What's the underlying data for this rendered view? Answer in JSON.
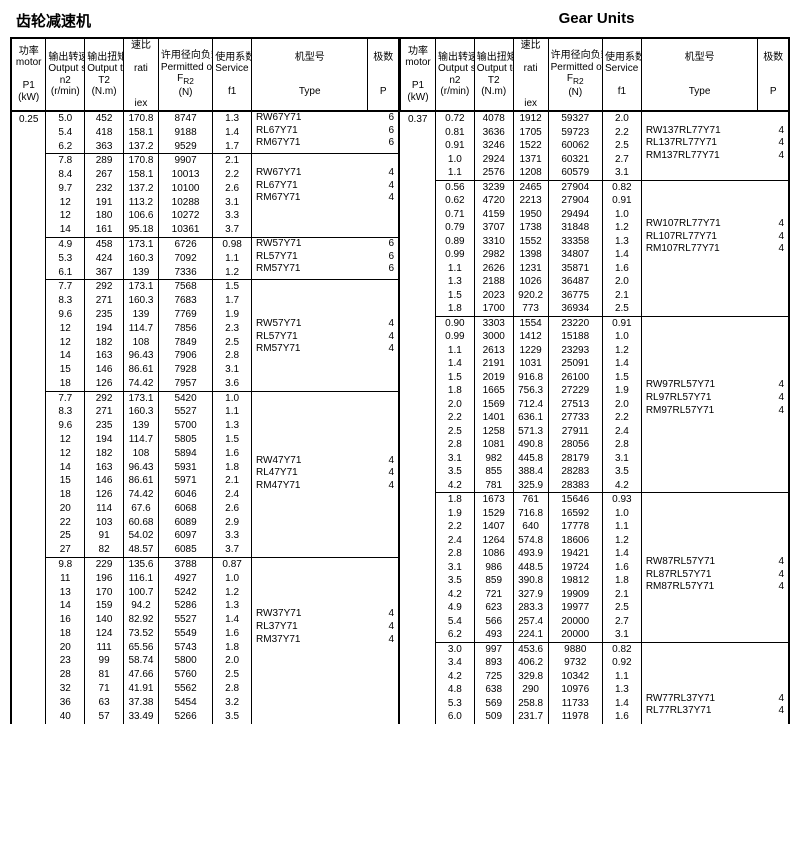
{
  "title_cn": "齿轮减速机",
  "title_en": "Gear Units",
  "headers": {
    "p1": {
      "cn": "功率",
      "en": "motor",
      "sym": "P1",
      "unit": "(kW)"
    },
    "n2": {
      "cn": "输出转速",
      "en": "Output speed",
      "sym": "n2",
      "unit": "(r/min)"
    },
    "t2": {
      "cn": "输出扭矩",
      "en": "Output torque",
      "sym": "T2",
      "unit": "(N.m)"
    },
    "iex": {
      "cn": "速比",
      "en": "rati",
      "sym": "",
      "unit": "iex"
    },
    "fr2": {
      "cn": "许用径向负载",
      "en": "Permitted overhung",
      "sym": "F<sub>R2</sub>",
      "unit": "(N)"
    },
    "f1": {
      "cn": "使用系数",
      "en": "Service factor",
      "sym": "",
      "unit": "f1"
    },
    "type": {
      "cn": "机型号",
      "en": "Type",
      "sym": "",
      "unit": ""
    },
    "p": {
      "cn": "极数",
      "en": "P",
      "sym": "",
      "unit": ""
    }
  },
  "left": {
    "p1": "0.25",
    "groups": [
      {
        "rows": [
          [
            "5.0",
            "452",
            "170.8",
            "8747",
            "1.3"
          ],
          [
            "5.4",
            "418",
            "158.1",
            "9188",
            "1.4"
          ],
          [
            "6.2",
            "363",
            "137.2",
            "9529",
            "1.7"
          ]
        ],
        "types": [
          "RW67Y71",
          "RL67Y71",
          "RM67Y71"
        ],
        "p": [
          "6",
          "6",
          "6"
        ],
        "typeStart": 0
      },
      {
        "rows": [
          [
            "7.8",
            "289",
            "170.8",
            "9907",
            "2.1"
          ],
          [
            "8.4",
            "267",
            "158.1",
            "10013",
            "2.2"
          ],
          [
            "9.7",
            "232",
            "137.2",
            "10100",
            "2.6"
          ],
          [
            "12",
            "191",
            "113.2",
            "10288",
            "3.1"
          ],
          [
            "12",
            "180",
            "106.6",
            "10272",
            "3.3"
          ],
          [
            "14",
            "161",
            "95.18",
            "10361",
            "3.7"
          ]
        ],
        "types": [
          "RW67Y71",
          "RL67Y71",
          "RM67Y71"
        ],
        "p": [
          "4",
          "4",
          "4"
        ],
        "typeStart": 1
      },
      {
        "rows": [
          [
            "4.9",
            "458",
            "173.1",
            "6726",
            "0.98"
          ],
          [
            "5.3",
            "424",
            "160.3",
            "7092",
            "1.1"
          ],
          [
            "6.1",
            "367",
            "139",
            "7336",
            "1.2"
          ]
        ],
        "types": [
          "RW57Y71",
          "RL57Y71",
          "RM57Y71"
        ],
        "p": [
          "6",
          "6",
          "6"
        ],
        "typeStart": 0
      },
      {
        "rows": [
          [
            "7.7",
            "292",
            "173.1",
            "7568",
            "1.5"
          ],
          [
            "8.3",
            "271",
            "160.3",
            "7683",
            "1.7"
          ],
          [
            "9.6",
            "235",
            "139",
            "7769",
            "1.9"
          ],
          [
            "12",
            "194",
            "114.7",
            "7856",
            "2.3"
          ],
          [
            "12",
            "182",
            "108",
            "7849",
            "2.5"
          ],
          [
            "14",
            "163",
            "96.43",
            "7906",
            "2.8"
          ],
          [
            "15",
            "146",
            "86.61",
            "7928",
            "3.1"
          ],
          [
            "18",
            "126",
            "74.42",
            "7957",
            "3.6"
          ]
        ],
        "types": [
          "RW57Y71",
          "RL57Y71",
          "RM57Y71"
        ],
        "p": [
          "4",
          "4",
          "4"
        ],
        "typeStart": 3
      },
      {
        "rows": [
          [
            "7.7",
            "292",
            "173.1",
            "5420",
            "1.0"
          ],
          [
            "8.3",
            "271",
            "160.3",
            "5527",
            "1.1"
          ],
          [
            "9.6",
            "235",
            "139",
            "5700",
            "1.3"
          ],
          [
            "12",
            "194",
            "114.7",
            "5805",
            "1.5"
          ],
          [
            "12",
            "182",
            "108",
            "5894",
            "1.6"
          ],
          [
            "14",
            "163",
            "96.43",
            "5931",
            "1.8"
          ],
          [
            "15",
            "146",
            "86.61",
            "5971",
            "2.1"
          ],
          [
            "18",
            "126",
            "74.42",
            "6046",
            "2.4"
          ],
          [
            "20",
            "114",
            "67.6",
            "6068",
            "2.6"
          ],
          [
            "22",
            "103",
            "60.68",
            "6089",
            "2.9"
          ],
          [
            "25",
            "91",
            "54.02",
            "6097",
            "3.3"
          ],
          [
            "27",
            "82",
            "48.57",
            "6085",
            "3.7"
          ]
        ],
        "types": [
          "RW47Y71",
          "RL47Y71",
          "RM47Y71"
        ],
        "p": [
          "4",
          "4",
          "4"
        ],
        "typeStart": 5
      },
      {
        "rows": [
          [
            "9.8",
            "229",
            "135.6",
            "3788",
            "0.87"
          ],
          [
            "11",
            "196",
            "116.1",
            "4927",
            "1.0"
          ],
          [
            "13",
            "170",
            "100.7",
            "5242",
            "1.2"
          ],
          [
            "14",
            "159",
            "94.2",
            "5286",
            "1.3"
          ],
          [
            "16",
            "140",
            "82.92",
            "5527",
            "1.4"
          ],
          [
            "18",
            "124",
            "73.52",
            "5549",
            "1.6"
          ],
          [
            "20",
            "111",
            "65.56",
            "5743",
            "1.8"
          ],
          [
            "23",
            "99",
            "58.74",
            "5800",
            "2.0"
          ],
          [
            "28",
            "81",
            "47.66",
            "5760",
            "2.5"
          ],
          [
            "32",
            "71",
            "41.91",
            "5562",
            "2.8"
          ],
          [
            "36",
            "63",
            "37.38",
            "5454",
            "3.2"
          ],
          [
            "40",
            "57",
            "33.49",
            "5266",
            "3.5"
          ]
        ],
        "types": [
          "RW37Y71",
          "RL37Y71",
          "RM37Y71"
        ],
        "p": [
          "4",
          "4",
          "4"
        ],
        "typeStart": 4
      }
    ]
  },
  "right": {
    "p1": "0.37",
    "groups": [
      {
        "rows": [
          [
            "0.72",
            "4078",
            "1912",
            "59327",
            "2.0"
          ],
          [
            "0.81",
            "3636",
            "1705",
            "59723",
            "2.2"
          ],
          [
            "0.91",
            "3246",
            "1522",
            "60062",
            "2.5"
          ],
          [
            "1.0",
            "2924",
            "1371",
            "60321",
            "2.7"
          ],
          [
            "1.1",
            "2576",
            "1208",
            "60579",
            "3.1"
          ]
        ],
        "types": [
          "RW137RL77Y71",
          "RL137RL77Y71",
          "RM137RL77Y71"
        ],
        "p": [
          "4",
          "4",
          "4"
        ],
        "typeStart": 1
      },
      {
        "rows": [
          [
            "0.56",
            "3239",
            "2465",
            "27904",
            "0.82"
          ],
          [
            "0.62",
            "4720",
            "2213",
            "27904",
            "0.91"
          ],
          [
            "0.71",
            "4159",
            "1950",
            "29494",
            "1.0"
          ],
          [
            "0.79",
            "3707",
            "1738",
            "31848",
            "1.2"
          ],
          [
            "0.89",
            "3310",
            "1552",
            "33358",
            "1.3"
          ],
          [
            "0.99",
            "2982",
            "1398",
            "34807",
            "1.4"
          ],
          [
            "1.1",
            "2626",
            "1231",
            "35871",
            "1.6"
          ],
          [
            "1.3",
            "2188",
            "1026",
            "36487",
            "2.0"
          ],
          [
            "1.5",
            "2023",
            "920.2",
            "36775",
            "2.1"
          ],
          [
            "1.8",
            "1700",
            "773",
            "36934",
            "2.5"
          ]
        ],
        "types": [
          "RW107RL77Y71",
          "RL107RL77Y71",
          "RM107RL77Y71"
        ],
        "p": [
          "4",
          "4",
          "4"
        ],
        "typeStart": 3
      },
      {
        "rows": [
          [
            "0.90",
            "3303",
            "1554",
            "23220",
            "0.91"
          ],
          [
            "0.99",
            "3000",
            "1412",
            "15188",
            "1.0"
          ],
          [
            "1.1",
            "2613",
            "1229",
            "23293",
            "1.2"
          ],
          [
            "1.4",
            "2191",
            "1031",
            "25091",
            "1.4"
          ],
          [
            "1.5",
            "2019",
            "916.8",
            "26100",
            "1.5"
          ],
          [
            "1.8",
            "1665",
            "756.3",
            "27229",
            "1.9"
          ],
          [
            "2.0",
            "1569",
            "712.4",
            "27513",
            "2.0"
          ],
          [
            "2.2",
            "1401",
            "636.1",
            "27733",
            "2.2"
          ],
          [
            "2.5",
            "1258",
            "571.3",
            "27911",
            "2.4"
          ],
          [
            "2.8",
            "1081",
            "490.8",
            "28056",
            "2.8"
          ],
          [
            "3.1",
            "982",
            "445.8",
            "28179",
            "3.1"
          ],
          [
            "3.5",
            "855",
            "388.4",
            "28283",
            "3.5"
          ],
          [
            "4.2",
            "781",
            "325.9",
            "28383",
            "4.2"
          ]
        ],
        "types": [
          "RW97RL57Y71",
          "RL97RL57Y71",
          "RM97RL57Y71"
        ],
        "p": [
          "4",
          "4",
          "4"
        ],
        "typeStart": 5
      },
      {
        "rows": [
          [
            "1.8",
            "1673",
            "761",
            "15646",
            "0.93"
          ],
          [
            "1.9",
            "1529",
            "716.8",
            "16592",
            "1.0"
          ],
          [
            "2.2",
            "1407",
            "640",
            "17778",
            "1.1"
          ],
          [
            "2.4",
            "1264",
            "574.8",
            "18606",
            "1.2"
          ],
          [
            "2.8",
            "1086",
            "493.9",
            "19421",
            "1.4"
          ],
          [
            "3.1",
            "986",
            "448.5",
            "19724",
            "1.6"
          ],
          [
            "3.5",
            "859",
            "390.8",
            "19812",
            "1.8"
          ],
          [
            "4.2",
            "721",
            "327.9",
            "19909",
            "2.1"
          ],
          [
            "4.9",
            "623",
            "283.3",
            "19977",
            "2.5"
          ],
          [
            "5.4",
            "566",
            "257.4",
            "20000",
            "2.7"
          ],
          [
            "6.2",
            "493",
            "224.1",
            "20000",
            "3.1"
          ]
        ],
        "types": [
          "RW87RL57Y71",
          "RL87RL57Y71",
          "RM87RL57Y71"
        ],
        "p": [
          "4",
          "4",
          "4"
        ],
        "typeStart": 5
      },
      {
        "rows": [
          [
            "3.0",
            "997",
            "453.6",
            "9880",
            "0.82"
          ],
          [
            "3.4",
            "893",
            "406.2",
            "9732",
            "0.92"
          ],
          [
            "4.2",
            "725",
            "329.8",
            "10342",
            "1.1"
          ],
          [
            "4.8",
            "638",
            "290",
            "10976",
            "1.3"
          ],
          [
            "5.3",
            "569",
            "258.8",
            "11733",
            "1.4"
          ],
          [
            "6.0",
            "509",
            "231.7",
            "11978",
            "1.6"
          ]
        ],
        "types": [
          "RW77RL37Y71",
          "RL77RL37Y71"
        ],
        "p": [
          "4",
          "4"
        ],
        "typeStart": 4
      }
    ]
  }
}
